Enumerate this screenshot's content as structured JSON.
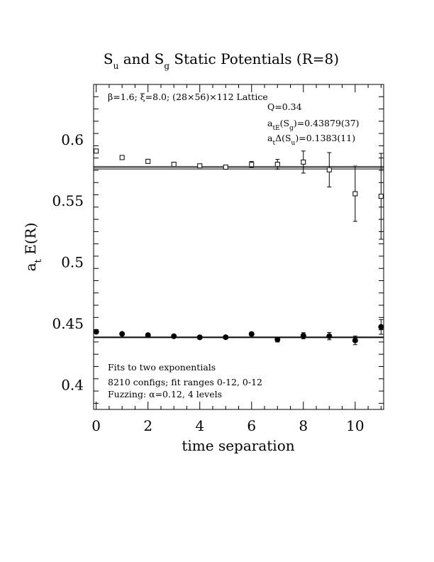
{
  "chart_data": {
    "type": "scatter",
    "title": "S_u and S_g Static Potentials (R=8)",
    "xlabel": "time separation",
    "ylabel": "a_t E(R)",
    "xlim": [
      -0.1,
      11.1
    ],
    "ylim": [
      0.38,
      0.645
    ],
    "x_ticks": [
      0,
      2,
      4,
      6,
      8,
      10
    ],
    "y_ticks": [
      0.4,
      0.45,
      0.5,
      0.55,
      0.6
    ],
    "x_tick_labels": [
      "0",
      "2",
      "4",
      "6",
      "8",
      "10"
    ],
    "y_tick_labels": [
      "0.4",
      "0.45",
      "0.5",
      "0.55",
      "0.6"
    ],
    "grid": false,
    "annotations": {
      "top_left": "β=1.6; ξ=8.0; (28×56)×112 Lattice",
      "q": "Q=0.34",
      "energy": "a_tE(S_g)=0.43879(37)",
      "delta": "a_tΔ(S_u)=0.1383(11)",
      "fits": "Fits to two exponentials",
      "configs": "8210 configs; fit ranges 0-12, 0-12",
      "fuzzing": "Fuzzing: α=0.12, 4 levels"
    },
    "series": [
      {
        "marker": "open-square",
        "x": [
          0,
          1,
          2,
          3,
          4,
          5,
          6,
          7,
          8,
          9,
          10,
          11
        ],
        "y": [
          0.5907,
          0.5854,
          0.5823,
          0.5799,
          0.5786,
          0.5776,
          0.5797,
          0.5799,
          0.5817,
          0.5754,
          0.5559,
          0.5538
        ],
        "err": [
          0.0006,
          0.0007,
          0.0008,
          0.0009,
          0.0012,
          0.0015,
          0.0025,
          0.004,
          0.009,
          0.014,
          0.0225,
          0.035
        ]
      },
      {
        "marker": "filled-circle",
        "x": [
          0,
          1,
          2,
          3,
          4,
          5,
          6,
          7,
          8,
          9,
          10,
          11
        ],
        "y": [
          0.4433,
          0.4416,
          0.4406,
          0.4397,
          0.4388,
          0.4389,
          0.4415,
          0.437,
          0.4401,
          0.4398,
          0.4363,
          0.4473
        ],
        "err": [
          0.0005,
          0.0006,
          0.0007,
          0.0008,
          0.001,
          0.0012,
          0.0015,
          0.002,
          0.0025,
          0.003,
          0.0035,
          0.006
        ]
      }
    ],
    "fit_lines": [
      {
        "value": 0.5771,
        "err": 0.0011,
        "x_range": [
          -0.1,
          11.1
        ]
      },
      {
        "value": 0.43879,
        "err": 0.00037,
        "x_range": [
          -0.1,
          11.1
        ]
      }
    ]
  }
}
